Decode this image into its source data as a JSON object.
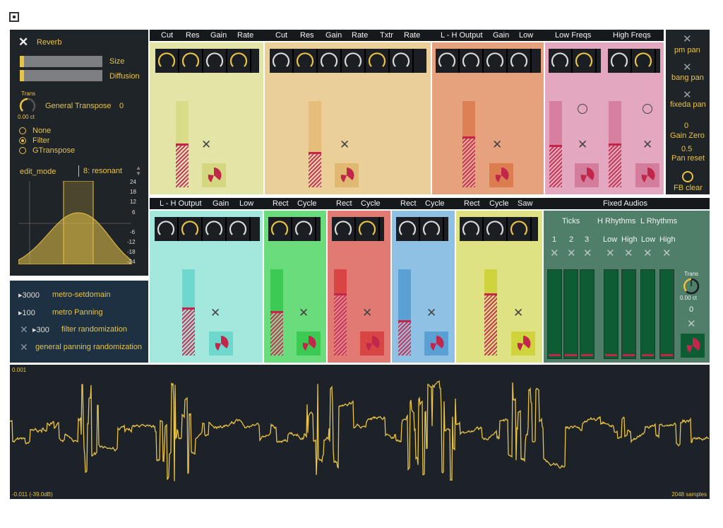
{
  "header_icon": "stop-square-icon",
  "reverb": {
    "title": "Reverb",
    "size_label": "Size",
    "diffusion_label": "Diffusion",
    "trans_label": "Trans",
    "trans_value": "0.00 ct",
    "general_transpose_label": "General Transpose",
    "general_transpose_value": "0",
    "modes": [
      "None",
      "Filter",
      "GTranspose"
    ],
    "selected_mode": "Filter",
    "edit_mode_label": "edit_mode",
    "edit_mode_value": "8: resonant",
    "db_ticks": [
      "24",
      "18",
      "12",
      "6",
      "-6",
      "-12",
      "-18",
      "-24"
    ]
  },
  "metro": {
    "rows": [
      {
        "value": "3000",
        "label": "metro-setdomain"
      },
      {
        "value": "100",
        "label": "metro Panning"
      },
      {
        "value": "300",
        "label": "filter randomization"
      },
      {
        "value": "",
        "label": "general panning randomization"
      }
    ]
  },
  "top_headers": [
    "Cut",
    "Res",
    "Gain",
    "Rate",
    "Cut",
    "Res",
    "Gain",
    "Rate",
    "Txtr",
    "Rate",
    "L - H Output",
    "Gain",
    "Low",
    "Low Freqs",
    "High Freqs"
  ],
  "bottom_headers": [
    "L - H Output",
    "Gain",
    "Low",
    "Rect",
    "Cycle",
    "Rect",
    "Cycle",
    "Rect",
    "Cycle",
    "Rect",
    "Cycle",
    "Saw",
    "Fixed Audios"
  ],
  "right_controls": {
    "pm_pan": "pm pan",
    "bang_pan": "bang pan",
    "fixeda_pan": "fixeda pan",
    "gain_zero_value": "0",
    "gain_zero": "Gain Zero",
    "pan_reset_value": "0.5",
    "pan_reset": "Pan reset",
    "fb_clear": "FB clear"
  },
  "fixed_audios": {
    "ticks_label": "Ticks",
    "h_rhythms_label": "H Rhythms",
    "l_rhythms_label": "L Rhythms",
    "sub_labels": [
      "1",
      "2",
      "3",
      "Low",
      "High",
      "Low",
      "High"
    ],
    "trans_label": "Trans",
    "trans_value": "0.00 ct",
    "trans_count": "0"
  },
  "scope": {
    "top_value": "0.001",
    "bottom_value": "-0.011 (-39.0dB)",
    "samples": "2048 samples"
  },
  "colors": {
    "yellow": "#e3e5a6",
    "peach": "#ebcf98",
    "orange": "#e5a27c",
    "pink": "#e3a8bf",
    "cyan": "#a4e8dd",
    "green": "#6bdc7b",
    "red": "#e07a73",
    "blue": "#8ec1e3",
    "lime": "#dfe283",
    "teal": "#4f7e69",
    "accent": "#e8c347"
  }
}
